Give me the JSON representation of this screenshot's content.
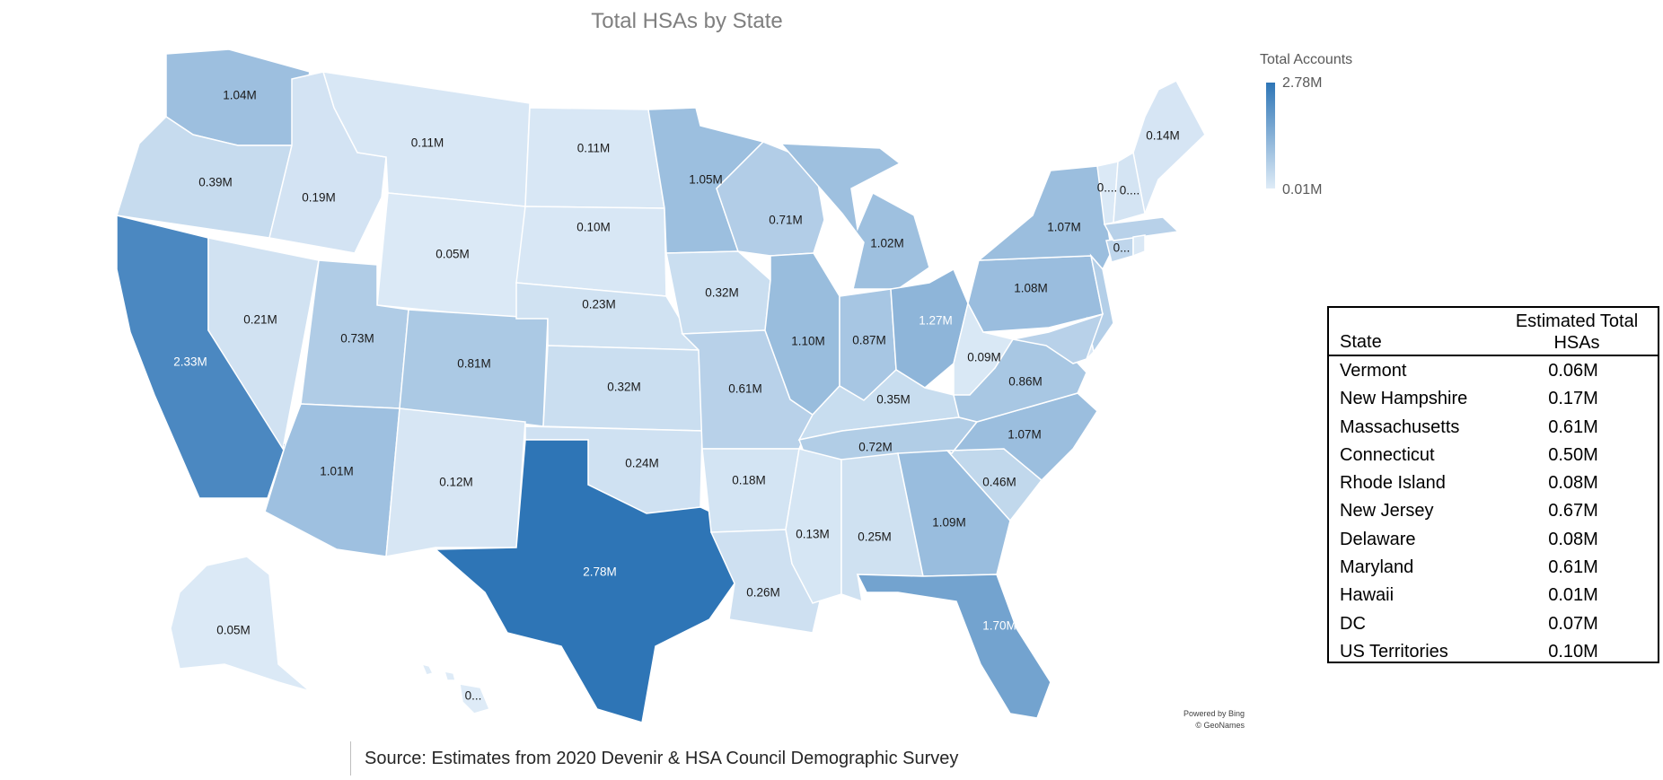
{
  "title": "Total HSAs by State",
  "legend": {
    "title": "Total Accounts",
    "max": "2.78M",
    "min": "0.01M",
    "colors": {
      "low": "#deebf7",
      "high": "#2e75b6"
    }
  },
  "attribution": [
    "Powered by Bing",
    "© GeoNames"
  ],
  "source": "Source: Estimates from 2020 Devenir & HSA Council Demographic Survey",
  "map_labels": [
    {
      "state": "WA",
      "label": "1.04M",
      "value": 1.04
    },
    {
      "state": "OR",
      "label": "0.39M",
      "value": 0.39
    },
    {
      "state": "CA",
      "label": "2.33M",
      "value": 2.33
    },
    {
      "state": "ID",
      "label": "0.19M",
      "value": 0.19
    },
    {
      "state": "NV",
      "label": "0.21M",
      "value": 0.21
    },
    {
      "state": "MT",
      "label": "0.11M",
      "value": 0.11
    },
    {
      "state": "WY",
      "label": "0.05M",
      "value": 0.05
    },
    {
      "state": "UT",
      "label": "0.73M",
      "value": 0.73
    },
    {
      "state": "AZ",
      "label": "1.01M",
      "value": 1.01
    },
    {
      "state": "CO",
      "label": "0.81M",
      "value": 0.81
    },
    {
      "state": "NM",
      "label": "0.12M",
      "value": 0.12
    },
    {
      "state": "ND",
      "label": "0.11M",
      "value": 0.11
    },
    {
      "state": "SD",
      "label": "0.10M",
      "value": 0.1
    },
    {
      "state": "NE",
      "label": "0.23M",
      "value": 0.23
    },
    {
      "state": "KS",
      "label": "0.32M",
      "value": 0.32
    },
    {
      "state": "OK",
      "label": "0.24M",
      "value": 0.24
    },
    {
      "state": "TX",
      "label": "2.78M",
      "value": 2.78
    },
    {
      "state": "MN",
      "label": "1.05M",
      "value": 1.05
    },
    {
      "state": "IA",
      "label": "0.32M",
      "value": 0.32
    },
    {
      "state": "MO",
      "label": "0.61M",
      "value": 0.61
    },
    {
      "state": "AR",
      "label": "0.18M",
      "value": 0.18
    },
    {
      "state": "LA",
      "label": "0.26M",
      "value": 0.26
    },
    {
      "state": "WI",
      "label": "0.71M",
      "value": 0.71
    },
    {
      "state": "IL",
      "label": "1.10M",
      "value": 1.1
    },
    {
      "state": "MI",
      "label": "1.02M",
      "value": 1.02
    },
    {
      "state": "IN",
      "label": "0.87M",
      "value": 0.87
    },
    {
      "state": "OH",
      "label": "1.27M",
      "value": 1.27
    },
    {
      "state": "KY",
      "label": "0.35M",
      "value": 0.35
    },
    {
      "state": "TN",
      "label": "0.72M",
      "value": 0.72
    },
    {
      "state": "MS",
      "label": "0.13M",
      "value": 0.13
    },
    {
      "state": "AL",
      "label": "0.25M",
      "value": 0.25
    },
    {
      "state": "GA",
      "label": "1.09M",
      "value": 1.09
    },
    {
      "state": "FL",
      "label": "1.70M",
      "value": 1.7
    },
    {
      "state": "SC",
      "label": "0.46M",
      "value": 0.46
    },
    {
      "state": "NC",
      "label": "1.07M",
      "value": 1.07
    },
    {
      "state": "VA",
      "label": "0.86M",
      "value": 0.86
    },
    {
      "state": "WV",
      "label": "0.09M",
      "value": 0.09
    },
    {
      "state": "PA",
      "label": "1.08M",
      "value": 1.08
    },
    {
      "state": "NY",
      "label": "1.07M",
      "value": 1.07
    },
    {
      "state": "ME",
      "label": "0.14M",
      "value": 0.14
    },
    {
      "state": "VT",
      "label": "0....",
      "value": 0.06
    },
    {
      "state": "NH",
      "label": "0....",
      "value": 0.17
    },
    {
      "state": "CT",
      "label": "0...",
      "value": 0.5
    },
    {
      "state": "AK",
      "label": "0.05M",
      "value": 0.05
    },
    {
      "state": "HI",
      "label": "0...",
      "value": 0.01
    },
    {
      "state": "MA",
      "label": "",
      "value": 0.61
    },
    {
      "state": "RI",
      "label": "",
      "value": 0.08
    },
    {
      "state": "NJ",
      "label": "",
      "value": 0.67
    },
    {
      "state": "DE",
      "label": "",
      "value": 0.08
    },
    {
      "state": "MD",
      "label": "",
      "value": 0.61
    }
  ],
  "table": {
    "header_state": "State",
    "header_value_line1": "Estimated Total",
    "header_value_line2": "HSAs",
    "rows": [
      {
        "state": "Vermont",
        "value": "0.06M"
      },
      {
        "state": "New Hampshire",
        "value": "0.17M"
      },
      {
        "state": "Massachusetts",
        "value": "0.61M"
      },
      {
        "state": "Connecticut",
        "value": "0.50M"
      },
      {
        "state": "Rhode Island",
        "value": "0.08M"
      },
      {
        "state": "New Jersey",
        "value": "0.67M"
      },
      {
        "state": "Delaware",
        "value": "0.08M"
      },
      {
        "state": "Maryland",
        "value": "0.61M"
      },
      {
        "state": "Hawaii",
        "value": "0.01M"
      },
      {
        "state": "DC",
        "value": "0.07M"
      },
      {
        "state": "US Territories",
        "value": "0.10M"
      }
    ]
  }
}
